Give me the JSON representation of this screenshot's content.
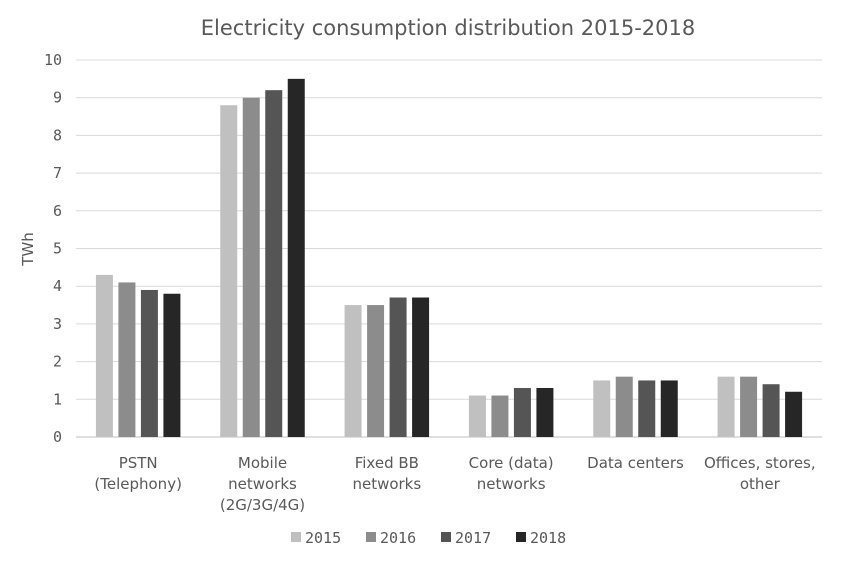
{
  "chart_data": {
    "type": "bar",
    "title": "Electricity consumption distribution 2015-2018",
    "xlabel": "",
    "ylabel": "TWh",
    "ylim": [
      0,
      10
    ],
    "yticks": [
      "0",
      "1",
      "2",
      "3",
      "4",
      "5",
      "6",
      "7",
      "8",
      "9",
      "10"
    ],
    "grid": true,
    "legend_position": "bottom",
    "categories": [
      [
        "PSTN",
        "(Telephony)"
      ],
      [
        "Mobile",
        "networks",
        "(2G/3G/4G)"
      ],
      [
        "Fixed BB",
        "networks"
      ],
      [
        "Core (data)",
        "networks"
      ],
      [
        "Data centers"
      ],
      [
        "Offices, stores,",
        "other"
      ]
    ],
    "series": [
      {
        "name": "2015",
        "color": "#c0c0c0",
        "values": [
          4.3,
          8.8,
          3.5,
          1.1,
          1.5,
          1.6
        ]
      },
      {
        "name": "2016",
        "color": "#8c8c8c",
        "values": [
          4.1,
          9.0,
          3.5,
          1.1,
          1.6,
          1.6
        ]
      },
      {
        "name": "2017",
        "color": "#555555",
        "values": [
          3.9,
          9.2,
          3.7,
          1.3,
          1.5,
          1.4
        ]
      },
      {
        "name": "2018",
        "color": "#262626",
        "values": [
          3.8,
          9.5,
          3.7,
          1.3,
          1.5,
          1.2
        ]
      }
    ]
  }
}
